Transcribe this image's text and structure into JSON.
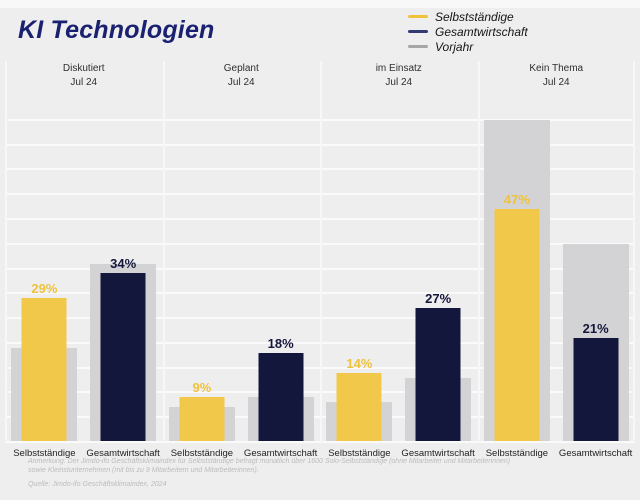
{
  "title": "KI Technologien",
  "colors": {
    "background": "#EEEEEE",
    "gridline": "#FAFAFA",
    "title": "#1A2170"
  },
  "legend": {
    "items": [
      {
        "label": "Selbstständige",
        "color": "#EFC23C"
      },
      {
        "label": "Gesamtwirtschaft",
        "color": "#333A73"
      },
      {
        "label": "Vorjahr",
        "color": "#A6A6A6"
      }
    ]
  },
  "chart_data": {
    "type": "bar",
    "title": "KI Technologien",
    "unit": "%",
    "ylim": [
      0,
      70
    ],
    "gridline_step": 5,
    "legend": [
      "Selbstständige",
      "Gesamtwirtschaft",
      "Vorjahr"
    ],
    "series_colors": {
      "selbststaendige": "#F2C84A",
      "gesamtwirtschaft": "#14173C",
      "vorjahr": "#D3D3D5"
    },
    "label_colors": {
      "selbststaendige": "#EFC23C",
      "gesamtwirtschaft": "#14173C"
    },
    "panels": [
      {
        "header": "Diskutiert",
        "subheader": "Jul 24",
        "bars": [
          {
            "category": "Selbstständige",
            "series": "selbststaendige",
            "value": 29,
            "label": "29%",
            "vorjahr": 19
          },
          {
            "category": "Gesamtwirtschaft",
            "series": "gesamtwirtschaft",
            "value": 34,
            "label": "34%",
            "vorjahr": 36
          }
        ]
      },
      {
        "header": "Geplant",
        "subheader": "Jul 24",
        "bars": [
          {
            "category": "Selbstständige",
            "series": "selbststaendige",
            "value": 9,
            "label": "9%",
            "vorjahr": 7
          },
          {
            "category": "Gesamtwirtschaft",
            "series": "gesamtwirtschaft",
            "value": 18,
            "label": "18%",
            "vorjahr": 9
          }
        ]
      },
      {
        "header": "im Einsatz",
        "subheader": "Jul 24",
        "bars": [
          {
            "category": "Selbstständige",
            "series": "selbststaendige",
            "value": 14,
            "label": "14%",
            "vorjahr": 8
          },
          {
            "category": "Gesamtwirtschaft",
            "series": "gesamtwirtschaft",
            "value": 27,
            "label": "27%",
            "vorjahr": 13
          }
        ]
      },
      {
        "header": "Kein Thema",
        "subheader": "Jul 24",
        "bars": [
          {
            "category": "Selbstständige",
            "series": "selbststaendige",
            "value": 47,
            "label": "47%",
            "vorjahr": 65
          },
          {
            "category": "Gesamtwirtschaft",
            "series": "gesamtwirtschaft",
            "value": 21,
            "label": "21%",
            "vorjahr": 40
          }
        ]
      }
    ]
  },
  "footnote": {
    "line1": "Anmerkung: Der Jimdo-ifo Geschäftsklimaindex für Selbstständige befragt monatlich über 1600 Solo-Selbstständige (ohne Mitarbeiter und Mitarbeiterinnen)",
    "line2": "sowie Kleinstunternehmen (mit bis zu 9 Mitarbeitern und Mitarbeiterinnen).",
    "source": "Quelle: Jimdo-ifo Geschäftsklimaindex, 2024"
  }
}
